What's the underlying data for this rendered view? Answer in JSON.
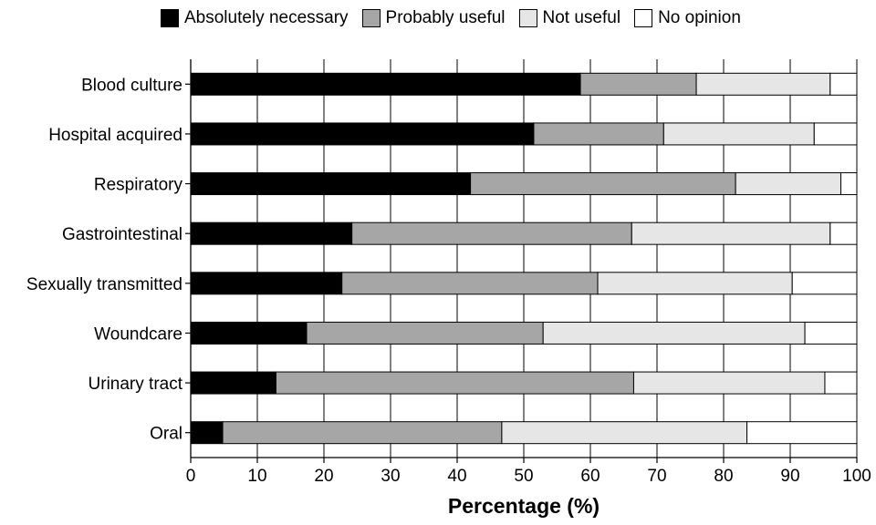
{
  "chart_data": {
    "type": "bar",
    "orientation": "horizontal",
    "stacked": true,
    "title": "",
    "xlabel": "Percentage (%)",
    "ylabel": "",
    "xlim": [
      0,
      100
    ],
    "xticks": [
      "0",
      "10",
      "20",
      "30",
      "40",
      "50",
      "60",
      "70",
      "80",
      "90",
      "100"
    ],
    "grid": "vertical",
    "legend_position": "top",
    "categories": [
      "Blood culture",
      "Hospital acquired",
      "Respiratory",
      "Gastrointestinal",
      "Sexually transmitted",
      "Woundcare",
      "Urinary tract",
      "Oral"
    ],
    "series": [
      {
        "name": "Absolutely necessary",
        "color": "#000000",
        "values": [
          58.5,
          51.5,
          42.0,
          24.2,
          22.7,
          17.4,
          12.8,
          4.8
        ]
      },
      {
        "name": "Probably useful",
        "color": "#a6a6a6",
        "values": [
          17.4,
          19.5,
          39.8,
          42.0,
          38.4,
          35.5,
          53.7,
          41.9
        ]
      },
      {
        "name": "Not useful",
        "color": "#e6e6e6",
        "values": [
          20.1,
          22.6,
          15.8,
          29.8,
          29.2,
          39.3,
          28.7,
          36.8
        ]
      },
      {
        "name": "No opinion",
        "color": "#ffffff",
        "values": [
          4.0,
          6.4,
          2.4,
          4.0,
          9.7,
          7.8,
          4.8,
          16.5
        ]
      }
    ]
  }
}
